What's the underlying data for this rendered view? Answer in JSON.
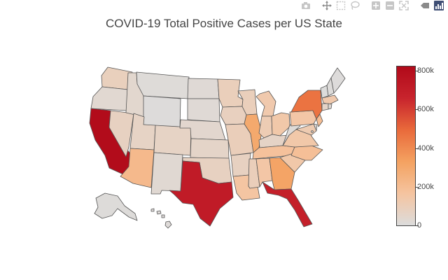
{
  "title": "COVID-19 Total Positive Cases per US State",
  "modebar": {
    "buttons": [
      {
        "name": "camera-icon",
        "label": "Download plot as a png"
      },
      {
        "name": "pan-icon",
        "label": "Pan"
      },
      {
        "name": "box-select-icon",
        "label": "Box Select"
      },
      {
        "name": "lasso-select-icon",
        "label": "Lasso Select"
      },
      {
        "name": "zoom-in-icon",
        "label": "Zoom in"
      },
      {
        "name": "zoom-out-icon",
        "label": "Zoom out"
      },
      {
        "name": "autoscale-icon",
        "label": "Reset"
      },
      {
        "name": "hover-closest-icon",
        "label": "Show closest data on hover"
      },
      {
        "name": "plotly-logo-icon",
        "label": "Produced with Plotly"
      }
    ]
  },
  "colorscale": {
    "min": 0,
    "max": 830000,
    "ticks": [
      {
        "value": 0,
        "label": "0"
      },
      {
        "value": 200000,
        "label": "200k"
      },
      {
        "value": 400000,
        "label": "400k"
      },
      {
        "value": 600000,
        "label": "600k"
      },
      {
        "value": 800000,
        "label": "800k"
      }
    ],
    "stops": [
      "#dcdcdc",
      "#f5c4a0",
      "#f4a261",
      "#e96a3b",
      "#c8242d",
      "#b10a1a"
    ]
  },
  "chart_data": {
    "type": "choropleth",
    "locationmode": "USA-states",
    "title": "COVID-19 Total Positive Cases per US State",
    "values": {
      "CA": 820000,
      "TX": 720000,
      "FL": 690000,
      "NY": 470000,
      "GA": 320000,
      "IL": 300000,
      "AZ": 220000,
      "NC": 190000,
      "NJ": 200000,
      "TN": 180000,
      "LA": 160000,
      "PA": 150000,
      "AL": 150000,
      "OH": 140000,
      "VA": 140000,
      "SC": 140000,
      "MA": 130000,
      "MI": 130000,
      "MD": 120000,
      "IN": 110000,
      "MS": 95000,
      "WI": 90000,
      "MO": 95000,
      "MN": 90000,
      "WA": 85000,
      "AR": 75000,
      "CO": 65000,
      "NV": 75000,
      "IA": 80000,
      "UT": 65000,
      "OK": 75000,
      "KY": 60000,
      "KS": 55000,
      "CT": 55000,
      "NE": 40000,
      "NM": 28000,
      "ID": 38000,
      "OR": 30000,
      "RI": 25000,
      "SD": 20000,
      "ND": 20000,
      "DE": 20000,
      "WV": 14000,
      "MT": 10000,
      "NH": 8000,
      "HI": 11000,
      "ME": 5000,
      "AK": 7000,
      "WY": 5000,
      "VT": 1800,
      "DC": 15000
    }
  }
}
